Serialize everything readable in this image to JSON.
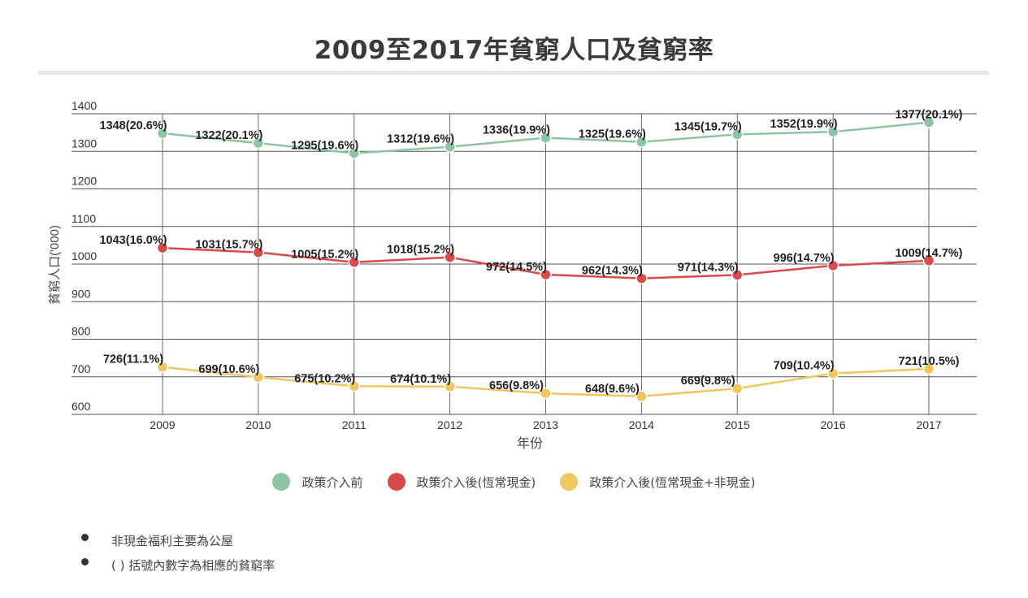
{
  "title": "2009至2017年貧窮人口及貧窮率",
  "legend": [
    {
      "label": "政策介入前",
      "color": "#8cc4a4"
    },
    {
      "label": "政策介入後(恆常現金)",
      "color": "#d94a4a"
    },
    {
      "label": "政策介入後(恆常現金+非現金)",
      "color": "#f0c75e"
    }
  ],
  "notes": [
    "非現金福利主要為公屋",
    "( ) 括號內數字為相應的貧窮率"
  ],
  "chart_data": {
    "type": "line",
    "title": "2009至2017年貧窮人口及貧窮率",
    "xlabel": "年份",
    "ylabel": "貧窮人口('000)",
    "ylim": [
      600,
      1400
    ],
    "yticks": [
      600,
      700,
      800,
      900,
      1000,
      1100,
      1200,
      1300,
      1400
    ],
    "grid": true,
    "legend_position": "bottom",
    "categories": [
      "2009",
      "2010",
      "2011",
      "2012",
      "2013",
      "2014",
      "2015",
      "2016",
      "2017"
    ],
    "series": [
      {
        "name": "政策介入前",
        "color": "#8cc4a4",
        "values": [
          1348,
          1322,
          1295,
          1312,
          1336,
          1325,
          1345,
          1352,
          1377
        ],
        "labels": [
          "1348(20.6%)",
          "1322(20.1%)",
          "1295(19.6%)",
          "1312(19.6%)",
          "1336(19.9%)",
          "1325(19.6%)",
          "1345(19.7%)",
          "1352(19.9%)",
          "1377(20.1%)"
        ]
      },
      {
        "name": "政策介入後(恆常現金)",
        "color": "#d94a4a",
        "values": [
          1043,
          1031,
          1005,
          1018,
          972,
          962,
          971,
          996,
          1009
        ],
        "labels": [
          "1043(16.0%)",
          "1031(15.7%)",
          "1005(15.2%)",
          "1018(15.2%)",
          "972(14.5%)",
          "962(14.3%)",
          "971(14.3%)",
          "996(14.7%)",
          "1009(14.7%)"
        ]
      },
      {
        "name": "政策介入後(恆常現金+非現金)",
        "color": "#f0c75e",
        "values": [
          726,
          699,
          675,
          674,
          656,
          648,
          669,
          709,
          721
        ],
        "labels": [
          "726(11.1%)",
          "699(10.6%)",
          "675(10.2%)",
          "674(10.1%)",
          "656(9.8%)",
          "648(9.6%)",
          "669(9.8%)",
          "709(10.4%)",
          "721(10.5%)"
        ]
      }
    ]
  }
}
